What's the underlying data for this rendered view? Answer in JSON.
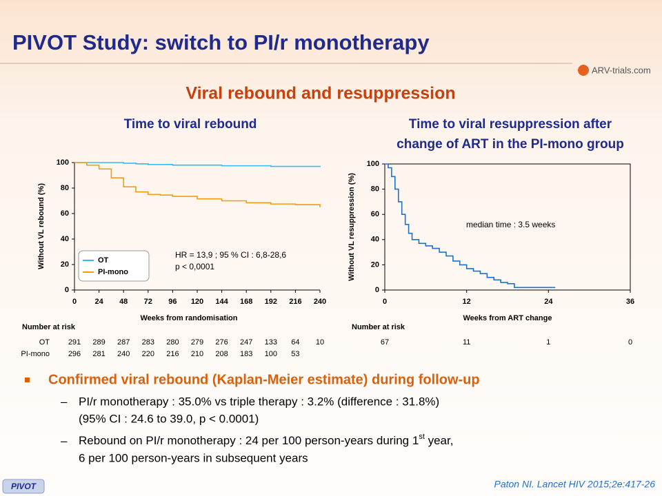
{
  "header": {
    "title": "PIVOT Study: switch to PI/r monotherapy",
    "logo": "ARV-trials.com",
    "subtitle": "Viral rebound and resuppression"
  },
  "chart_data": [
    {
      "type": "line",
      "title": [
        "Time to viral rebound"
      ],
      "x_label": "Weeks from randomisation",
      "y_label": "Without VL rebound (%)",
      "xlim": [
        0,
        240
      ],
      "xticks": [
        0,
        24,
        48,
        72,
        96,
        120,
        144,
        168,
        192,
        216,
        240
      ],
      "ylim": [
        0,
        100
      ],
      "yticks": [
        0,
        20,
        40,
        60,
        80,
        100
      ],
      "x": [
        0,
        12,
        24,
        36,
        48,
        60,
        72,
        84,
        96,
        120,
        144,
        168,
        192,
        216,
        240
      ],
      "series": [
        {
          "name": "OT",
          "color": "#33bbee",
          "values": [
            100,
            100,
            100,
            100,
            99.5,
            99,
            98.5,
            98.5,
            98,
            98,
            97.5,
            97.5,
            97,
            97,
            96.5
          ]
        },
        {
          "name": "PI-mono",
          "color": "#f39c12",
          "values": [
            100,
            98,
            95,
            88,
            81,
            77,
            75,
            74.5,
            73.5,
            71.5,
            70,
            68.5,
            67.5,
            67,
            65
          ]
        }
      ],
      "legend": "lower left",
      "annotations": [
        "HR = 13,9 ; 95 % CI : 6,8-28,6",
        "p < 0,0001"
      ],
      "risk_table": {
        "title": "Number at risk",
        "rows": [
          {
            "name": "OT",
            "values": [
              291,
              289,
              287,
              283,
              280,
              279,
              276,
              247,
              133,
              64,
              10
            ]
          },
          {
            "name": "PI-mono",
            "values": [
              296,
              281,
              240,
              220,
              216,
              210,
              208,
              183,
              100,
              53,
              null
            ]
          }
        ]
      }
    },
    {
      "type": "line",
      "title": [
        "Time to viral resuppression after",
        "change of ART in the PI-mono group"
      ],
      "x_label": "Weeks from ART change",
      "y_label": "Without VL resuppression  (%)",
      "xlim": [
        0,
        36
      ],
      "xticks": [
        0,
        12,
        24,
        36
      ],
      "ylim": [
        0,
        100
      ],
      "yticks": [
        0,
        20,
        40,
        60,
        80,
        100
      ],
      "x": [
        0,
        0.5,
        1,
        1.5,
        2,
        2.5,
        3,
        3.5,
        4,
        5,
        6,
        7,
        8,
        9,
        10,
        11,
        12,
        13,
        14,
        15,
        16,
        17,
        18,
        19,
        20,
        25
      ],
      "series": [
        {
          "color": "#1f6fd1",
          "values": [
            100,
            97,
            90,
            80,
            70,
            60,
            52,
            45,
            40,
            37,
            35,
            33,
            30,
            27,
            23,
            20,
            17,
            15,
            13,
            10,
            8,
            6,
            5,
            2,
            2,
            2
          ]
        }
      ],
      "annotations": [
        "median time : 3.5 weeks"
      ],
      "risk_table": {
        "title": "Number at risk",
        "rows": [
          {
            "values": [
              67,
              11,
              1,
              0
            ]
          }
        ]
      }
    }
  ],
  "bullets": {
    "heading": "Confirmed viral rebound (Kaplan-Meier estimate) during follow-up",
    "items": [
      {
        "lines": [
          "PI/r monotherapy  : 35.0% vs triple therapy : 3.2% (difference : 31.8%)",
          "(95% CI : 24.6 to 39.0, p < 0.0001)"
        ]
      },
      {
        "line1": [
          "Rebound on PI/r monotherapy  : 24 per 100 person-years during  1",
          "st",
          " year,"
        ],
        "line2": "6 per 100 person-years in subsequent  years"
      }
    ]
  },
  "footer": {
    "badge": "PIVOT",
    "citation": "Paton NI. Lancet HIV 2015;2e:417-26"
  }
}
